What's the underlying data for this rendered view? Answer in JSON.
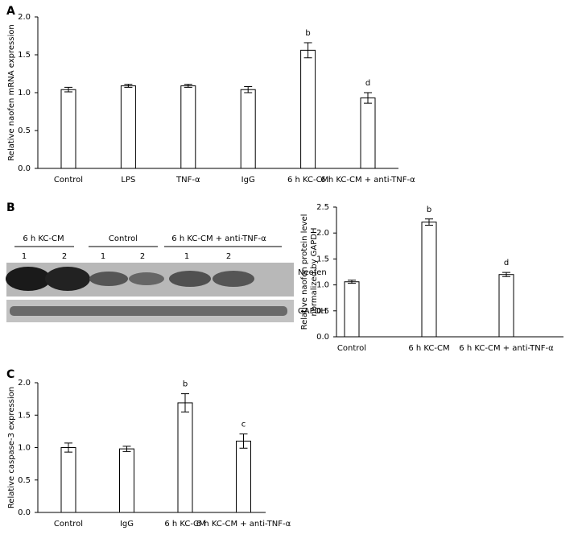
{
  "panel_labels": [
    "A",
    "B",
    "C"
  ],
  "blot": {
    "groups": [
      "6 h KC-CM",
      "Control",
      "6 h KC-CM + anti-TNF-α"
    ],
    "lanes": [
      "1",
      "2",
      "1",
      "2",
      "1",
      "2"
    ],
    "bands": [
      "Neofen",
      "GAPDH"
    ]
  },
  "chart_data": [
    {
      "type": "bar",
      "ylabel": [
        "Relative naofen mRNA expression"
      ],
      "categories": [
        "Control",
        "LPS",
        "TNF-α",
        "IgG",
        "6 h KC-CM",
        "6 h KC-CM + anti-TNF-α"
      ],
      "values": [
        1.04,
        1.09,
        1.09,
        1.04,
        1.56,
        0.93
      ],
      "errors": [
        0.03,
        0.02,
        0.02,
        0.04,
        0.1,
        0.07
      ],
      "annotations": [
        null,
        null,
        null,
        null,
        "b",
        "d"
      ],
      "color": "#ffffff",
      "ylim": [
        0,
        2
      ],
      "yticks": [
        {
          "value": 0,
          "label": "0.0"
        },
        0.5,
        {
          "value": 1,
          "label": "1.0"
        },
        1.5,
        {
          "value": 2,
          "label": "2.0"
        }
      ]
    },
    {
      "type": "bar",
      "ylabel": [
        "Relative naofen protein level",
        "normalized by GAPDH"
      ],
      "categories": [
        "Control",
        "6 h KC-CM",
        "6 h KC-CM + anti-TNF-α"
      ],
      "values": [
        1.06,
        2.21,
        1.2
      ],
      "errors": [
        0.03,
        0.06,
        0.04
      ],
      "annotations": [
        null,
        "b",
        "d"
      ],
      "color": "#ffffff",
      "ylim": [
        0,
        2.5
      ],
      "yticks": [
        {
          "value": 0,
          "label": "0.0"
        },
        0.5,
        {
          "value": 1,
          "label": "1.0"
        },
        1.5,
        {
          "value": 2,
          "label": "2.0"
        },
        2.5
      ]
    },
    {
      "type": "bar",
      "ylabel": [
        "Relative caspase-3 expression"
      ],
      "categories": [
        "Control",
        "IgG",
        "6 h KC-CM",
        "6 h KC-CM + anti-TNF-α"
      ],
      "values": [
        1.0,
        0.98,
        1.69,
        1.1
      ],
      "errors": [
        0.07,
        0.04,
        0.14,
        0.11
      ],
      "annotations": [
        null,
        null,
        "b",
        "c"
      ],
      "color": "#ffffff",
      "ylim": [
        0,
        2
      ],
      "yticks": [
        {
          "value": 0,
          "label": "0.0"
        },
        0.5,
        {
          "value": 1,
          "label": "1.0"
        },
        1.5,
        {
          "value": 2,
          "label": "2.0"
        }
      ]
    }
  ]
}
